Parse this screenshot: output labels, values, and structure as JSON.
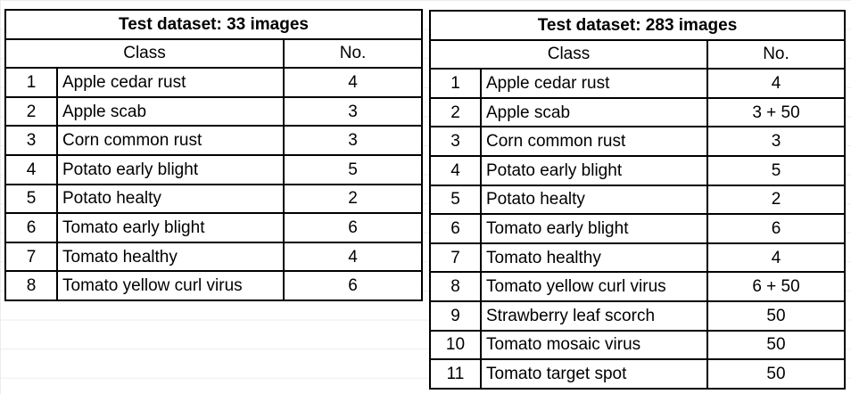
{
  "tables": [
    {
      "title": "Test dataset: 33 images",
      "headers": {
        "class": "Class",
        "count": "No."
      },
      "rows": [
        {
          "n": "1",
          "class": "Apple cedar rust",
          "count": "4"
        },
        {
          "n": "2",
          "class": "Apple scab",
          "count": "3"
        },
        {
          "n": "3",
          "class": "Corn common rust",
          "count": "3"
        },
        {
          "n": "4",
          "class": "Potato early blight",
          "count": "5"
        },
        {
          "n": "5",
          "class": "Potato healty",
          "count": "2"
        },
        {
          "n": "6",
          "class": "Tomato early blight",
          "count": "6"
        },
        {
          "n": "7",
          "class": "Tomato healthy",
          "count": "4"
        },
        {
          "n": "8",
          "class": "Tomato yellow curl virus",
          "count": "6"
        }
      ]
    },
    {
      "title": "Test dataset: 283 images",
      "headers": {
        "class": "Class",
        "count": "No."
      },
      "rows": [
        {
          "n": "1",
          "class": "Apple cedar rust",
          "count": "4"
        },
        {
          "n": "2",
          "class": "Apple scab",
          "count": "3 + 50"
        },
        {
          "n": "3",
          "class": "Corn common rust",
          "count": "3"
        },
        {
          "n": "4",
          "class": "Potato early blight",
          "count": "5"
        },
        {
          "n": "5",
          "class": "Potato healty",
          "count": "2"
        },
        {
          "n": "6",
          "class": "Tomato early blight",
          "count": "6"
        },
        {
          "n": "7",
          "class": "Tomato healthy",
          "count": "4"
        },
        {
          "n": "8",
          "class": "Tomato yellow curl virus",
          "count": "6 + 50"
        },
        {
          "n": "9",
          "class": "Strawberry leaf scorch",
          "count": "50"
        },
        {
          "n": "10",
          "class": "Tomato mosaic virus",
          "count": "50"
        },
        {
          "n": "11",
          "class": "Tomato target spot",
          "count": "50"
        }
      ]
    }
  ]
}
